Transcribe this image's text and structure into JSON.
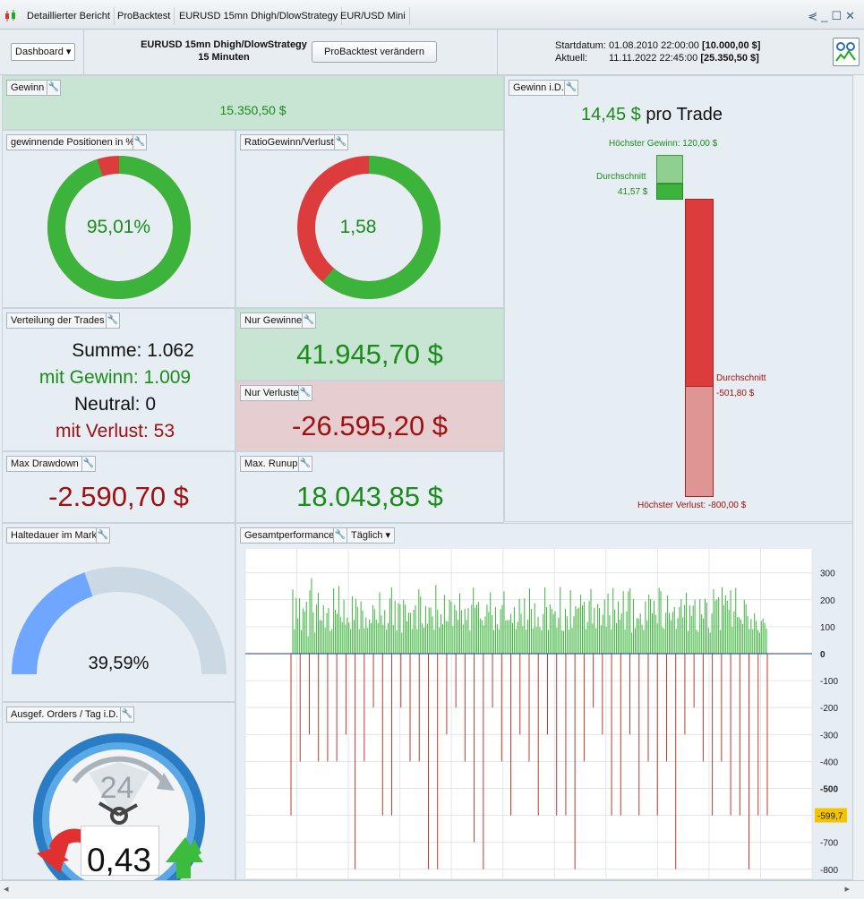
{
  "tabs": [
    "Detaillierter Bericht",
    "ProBacktest",
    "EURUSD 15mn Dhigh/DlowStrategy",
    "EUR/USD Mini"
  ],
  "header": {
    "dashboard_label": "Dashboard",
    "strategy_name": "EURUSD 15mn Dhigh/DlowStrategy",
    "timeframe": "15 Minuten",
    "change_button": "ProBacktest verändern",
    "start_label": "Startdatum:",
    "start_date": "01.08.2010 22:00:00",
    "start_value": "[10.000,00 $]",
    "current_label": "Aktuell:",
    "current_date": "11.11.2022 22:45:00",
    "current_value": "[25.350,50 $]"
  },
  "gewinn": {
    "label": "Gewinn",
    "value": "15.350,50 $"
  },
  "win_pct": {
    "label": "gewinnende Positionen in %",
    "value": "95,01%",
    "fraction": 0.9501
  },
  "ratio": {
    "label": "RatioGewinn/Verlust",
    "value": "1,58",
    "fraction": 0.6124
  },
  "gewinn_id": {
    "label": "Gewinn i.D.",
    "per_trade_value": "14,45 $",
    "per_trade_suffix": " pro Trade",
    "highest_gain": "Höchster Gewinn: 120,00 $",
    "avg_gain_label": "Durchschnitt",
    "avg_gain": "41,57 $",
    "avg_loss_label": "Durchschnitt",
    "avg_loss": "-501,80 $",
    "highest_loss": "Höchster Verlust: -800,00 $"
  },
  "trades": {
    "label": "Verteilung der Trades",
    "sum": "Summe: 1.062",
    "win": "mit Gewinn: 1.009",
    "neutral": "Neutral: 0",
    "loss": "mit Verlust: 53"
  },
  "nur_gewinne": {
    "label": "Nur Gewinne",
    "value": "41.945,70 $"
  },
  "nur_verluste": {
    "label": "Nur Verluste",
    "value": "-26.595,20 $"
  },
  "drawdown": {
    "label": "Max Drawdown",
    "value": "-2.590,70 $"
  },
  "runup": {
    "label": "Max. Runup:",
    "value": "18.043,85 $"
  },
  "halte": {
    "label": "Haltedauer im Markt",
    "value": "39,59%",
    "fraction": 0.3959
  },
  "orders": {
    "label": "Ausgef. Orders / Tag i.D.",
    "value": "0,43",
    "clock": "24"
  },
  "gesamt": {
    "label": "Gesamtperformance",
    "period": "Täglich",
    "marker": "-599,7"
  },
  "colors": {
    "green": "#3cb43c",
    "red": "#dd3c3c",
    "blue": "#6fa6ff",
    "gray": "#cad9e4"
  },
  "chart_data": {
    "type": "bar",
    "title": "",
    "y_ticks": [
      "300",
      "200",
      "100",
      "0",
      "-100",
      "-200",
      "-300",
      "-400",
      "-500",
      "-600",
      "-700",
      "-800"
    ],
    "ylim": [
      -860,
      350
    ],
    "grid": true,
    "series": [
      {
        "values": [
          238,
          91,
          206,
          131,
          205,
          88,
          168,
          156,
          193,
          64,
          235,
          280,
          154,
          78,
          182,
          226,
          125,
          123,
          180,
          96,
          151,
          169,
          84,
          91,
          243,
          163,
          148,
          251,
          137,
          117,
          200,
          108,
          134,
          115,
          91,
          213,
          125,
          204,
          174,
          91,
          194,
          160,
          94,
          134,
          96,
          127,
          114,
          180,
          165,
          127,
          113,
          228,
          142,
          107,
          162,
          89,
          114,
          205,
          245,
          106,
          196,
          86,
          188,
          183,
          78,
          200,
          182,
          120,
          152,
          152,
          91,
          163,
          180,
          91,
          239,
          212,
          112,
          97,
          176,
          111,
          171,
          171,
          138,
          89,
          255,
          163,
          97,
          146,
          109,
          218,
          121,
          120,
          200,
          193,
          102,
          182,
          160,
          126,
          223,
          160,
          108,
          167,
          125,
          169,
          86,
          181,
          245,
          170,
          182,
          192,
          131,
          125,
          105,
          138,
          182,
          155,
          228,
          143,
          87,
          173,
          109,
          90,
          165,
          180,
          231,
          123,
          125,
          125,
          148,
          114,
          173,
          91,
          118,
          203,
          149,
          102,
          205,
          89,
          127,
          242,
          166,
          94,
          187,
          99,
          136,
          99,
          87,
          146,
          246,
          173,
          88,
          183,
          167,
          147,
          157,
          97,
          133,
          247,
          86,
          83,
          167,
          138,
          89,
          236,
          96,
          139,
          176,
          166,
          171,
          219,
          179,
          192,
          91,
          118,
          195,
          240,
          112,
          170,
          95,
          184,
          169,
          105,
          144,
          201,
          100,
          223,
          142,
          91,
          244,
          163,
          113,
          194,
          126,
          150,
          232,
          90,
          157,
          231,
          243,
          78,
          203,
          95,
          132,
          130,
          150,
          108,
          88,
          194,
          123,
          219,
          203,
          150,
          196,
          144,
          112,
          244,
          232,
          98,
          92,
          152,
          216,
          151,
          124,
          155,
          173,
          92,
          132,
          173,
          202,
          135,
          181,
          226,
          84,
          179,
          140,
          178,
          200,
          89,
          81,
          202,
          146,
          131,
          204,
          190,
          96,
          78,
          149,
          239,
          197,
          202,
          209,
          88,
          247,
          181,
          216,
          196,
          163,
          236,
          99,
          157,
          244,
          136,
          135,
          127,
          110,
          200,
          183,
          140,
          92,
          129,
          90,
          150,
          122,
          88,
          78,
          122,
          130,
          114,
          93
        ]
      },
      {
        "values": [
          -600,
          -400,
          -300,
          -400,
          -400,
          -400,
          -300,
          -800,
          -400,
          -200,
          -600,
          -600,
          -200,
          -400,
          -400,
          -800,
          -800,
          -300,
          -200,
          -400,
          -700,
          -800,
          -200,
          -400,
          -600,
          -300,
          -400,
          -600,
          -300,
          -600,
          -600,
          -800,
          -400,
          -200,
          -300,
          -600,
          -600,
          -300,
          -600,
          -400,
          -600,
          -400,
          -800,
          -300,
          -200,
          -400,
          -600,
          -400,
          -600,
          -600,
          -800,
          -600,
          -600
        ]
      }
    ]
  }
}
